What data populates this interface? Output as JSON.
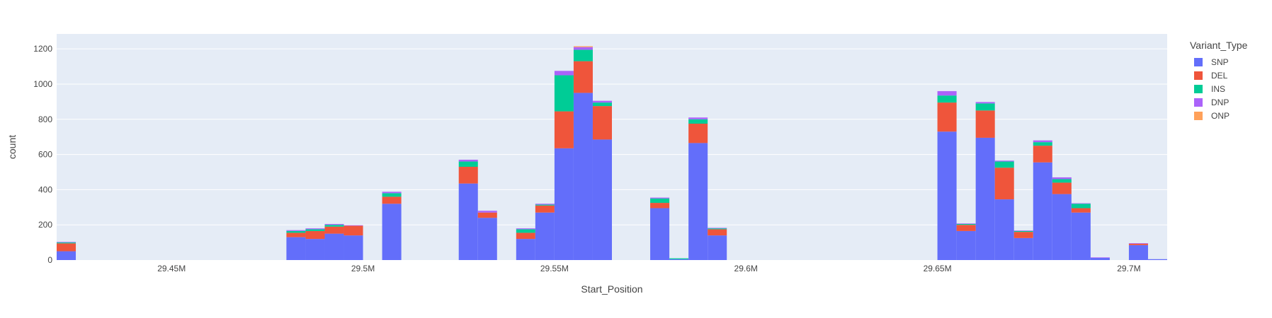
{
  "chart_data": {
    "type": "bar",
    "barmode": "stack",
    "xlabel": "Start_Position",
    "ylabel": "count",
    "x_tick_values": [
      29450000,
      29500000,
      29550000,
      29600000,
      29650000,
      29700000
    ],
    "x_tick_labels": [
      "29.45M",
      "29.5M",
      "29.55M",
      "29.6M",
      "29.65M",
      "29.7M"
    ],
    "y_tick_values": [
      0,
      200,
      400,
      600,
      800,
      1000,
      1200
    ],
    "y_tick_labels": [
      "0",
      "200",
      "400",
      "600",
      "800",
      "1000",
      "1200"
    ],
    "xlim": [
      29420000,
      29710000
    ],
    "ylim": [
      0,
      1285
    ],
    "bin_width": 5000,
    "grid": true,
    "legend_title": "Variant_Type",
    "legend_position": "right",
    "bins": [
      29420000,
      29480000,
      29485000,
      29490000,
      29495000,
      29505000,
      29525000,
      29530000,
      29540000,
      29545000,
      29550000,
      29555000,
      29560000,
      29575000,
      29580000,
      29585000,
      29590000,
      29650000,
      29655000,
      29660000,
      29665000,
      29670000,
      29675000,
      29680000,
      29685000,
      29690000,
      29700000,
      29705000
    ],
    "series": [
      {
        "name": "SNP",
        "color": "#636efa",
        "values": [
          50,
          130,
          120,
          150,
          140,
          320,
          435,
          240,
          120,
          270,
          635,
          950,
          685,
          295,
          5,
          665,
          140,
          730,
          165,
          695,
          345,
          125,
          555,
          375,
          270,
          12,
          85,
          5
        ]
      },
      {
        "name": "DEL",
        "color": "#ef553b",
        "values": [
          45,
          25,
          45,
          40,
          55,
          40,
          95,
          30,
          35,
          40,
          210,
          180,
          190,
          30,
          0,
          110,
          35,
          165,
          35,
          155,
          180,
          35,
          95,
          65,
          25,
          0,
          8,
          0
        ]
      },
      {
        "name": "INS",
        "color": "#00cc96",
        "values": [
          5,
          10,
          10,
          10,
          0,
          20,
          30,
          0,
          20,
          5,
          205,
          65,
          20,
          25,
          5,
          25,
          5,
          40,
          5,
          40,
          35,
          5,
          20,
          20,
          25,
          0,
          0,
          0
        ]
      },
      {
        "name": "DNP",
        "color": "#ab63fa",
        "values": [
          3,
          5,
          5,
          5,
          3,
          8,
          10,
          10,
          5,
          5,
          25,
          15,
          10,
          5,
          0,
          10,
          3,
          25,
          3,
          8,
          5,
          3,
          10,
          10,
          3,
          3,
          3,
          0
        ]
      },
      {
        "name": "ONP",
        "color": "#ffa15a",
        "values": [
          0,
          0,
          0,
          0,
          0,
          0,
          0,
          0,
          0,
          0,
          0,
          5,
          0,
          0,
          0,
          0,
          0,
          0,
          0,
          0,
          0,
          0,
          0,
          0,
          0,
          0,
          0,
          0
        ]
      }
    ]
  }
}
